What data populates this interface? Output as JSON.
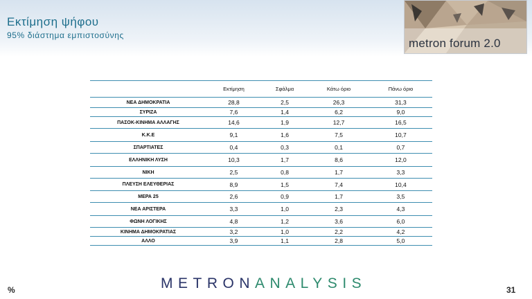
{
  "header": {
    "title": "Εκτίμηση ψήφου",
    "subtitle": "95% διάστημα εμπιστοσύνης",
    "logo_text": "metron forum 2.0"
  },
  "table": {
    "columns": [
      "",
      "Εκτίμηση",
      "Σφάλμα",
      "Κάτω όριο",
      "Πάνω όριο"
    ],
    "rows": [
      {
        "party": "ΝΕΑ ΔΗΜΟΚΡΑΤΙΑ",
        "estimate": "28,8",
        "error": "2,5",
        "lower": "26,3",
        "upper": "31,3"
      },
      {
        "party": "ΣΥΡΙΖΑ",
        "estimate": "7,6",
        "error": "1,4",
        "lower": "6,2",
        "upper": "9,0"
      },
      {
        "party": "ΠΑΣΟΚ-ΚΙΝΗΜΑ ΑΛΛΑΓΗΣ",
        "estimate": "14,6",
        "error": "1,9",
        "lower": "12,7",
        "upper": "16,5"
      },
      {
        "party": "Κ.Κ.Ε",
        "estimate": "9,1",
        "error": "1,6",
        "lower": "7,5",
        "upper": "10,7"
      },
      {
        "party": "ΣΠΑΡΤΙΑΤΕΣ",
        "estimate": "0,4",
        "error": "0,3",
        "lower": "0,1",
        "upper": "0,7"
      },
      {
        "party": "ΕΛΛΗΝΙΚΗ ΛΥΣΗ",
        "estimate": "10,3",
        "error": "1,7",
        "lower": "8,6",
        "upper": "12,0"
      },
      {
        "party": "ΝΙΚΗ",
        "estimate": "2,5",
        "error": "0,8",
        "lower": "1,7",
        "upper": "3,3"
      },
      {
        "party": "ΠΛΕΥΣΗ ΕΛΕΥΘΕΡΙΑΣ",
        "estimate": "8,9",
        "error": "1,5",
        "lower": "7,4",
        "upper": "10,4"
      },
      {
        "party": "ΜΕΡΑ 25",
        "estimate": "2,6",
        "error": "0,9",
        "lower": "1,7",
        "upper": "3,5"
      },
      {
        "party": "ΝΕΑ ΑΡΙΣΤΕΡΑ",
        "estimate": "3,3",
        "error": "1,0",
        "lower": "2,3",
        "upper": "4,3"
      },
      {
        "party": "ΦΩΝΗ ΛΟΓΙΚΗΣ",
        "estimate": "4,8",
        "error": "1,2",
        "lower": "3,6",
        "upper": "6,0"
      },
      {
        "party": "ΚΙΝΗΜΑ ΔΗΜΟΚΡΑΤΙΑΣ",
        "estimate": "3,2",
        "error": "1,0",
        "lower": "2,2",
        "upper": "4,2"
      },
      {
        "party": "ΑΛΛΟ",
        "estimate": "3,9",
        "error": "1,1",
        "lower": "2,8",
        "upper": "5,0"
      }
    ]
  },
  "footer": {
    "percent_sign": "%",
    "brand_part1": "METRON",
    "brand_part2": "ANALYSIS",
    "page_number": "31"
  }
}
